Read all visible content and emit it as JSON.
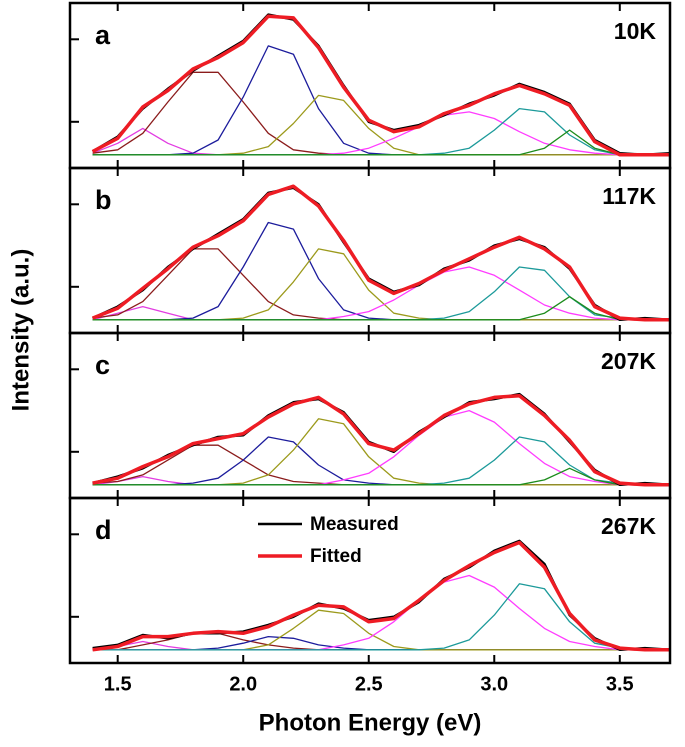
{
  "chart_data": [
    {
      "type": "line",
      "panel_label": "a",
      "annotation": "10K",
      "y_label": "Intensity (a.u.)",
      "x": [
        1.4,
        1.5,
        1.6,
        1.7,
        1.8,
        1.9,
        2.0,
        2.1,
        2.2,
        2.3,
        2.4,
        2.5,
        2.6,
        2.7,
        2.8,
        2.9,
        3.0,
        3.1,
        3.2,
        3.3,
        3.4,
        3.5,
        3.6,
        3.7
      ],
      "xlim": [
        1.31,
        3.7
      ],
      "ylim": [
        -0.08,
        0.92
      ],
      "yticks": [
        0.2,
        0.7
      ],
      "series": [
        {
          "color": "#e23ce2",
          "values": [
            0.01,
            0.07,
            0.16,
            0.07,
            0.01,
            0,
            0,
            0,
            0,
            0,
            0,
            0,
            0,
            0,
            0,
            0,
            0,
            0,
            0,
            0,
            0,
            0,
            0,
            0
          ]
        },
        {
          "color": "#8b1c1c",
          "values": [
            0.01,
            0.03,
            0.13,
            0.32,
            0.5,
            0.5,
            0.32,
            0.13,
            0.03,
            0.01,
            0,
            0,
            0,
            0,
            0,
            0,
            0,
            0,
            0,
            0,
            0,
            0,
            0,
            0
          ]
        },
        {
          "color": "#1c1c9c",
          "values": [
            0,
            0,
            0,
            0,
            0.01,
            0.09,
            0.35,
            0.66,
            0.61,
            0.28,
            0.07,
            0.01,
            0,
            0,
            0,
            0,
            0,
            0,
            0,
            0,
            0,
            0,
            0,
            0
          ]
        },
        {
          "color": "#9c9a1c",
          "values": [
            0,
            0,
            0,
            0,
            0,
            0,
            0.01,
            0.05,
            0.19,
            0.36,
            0.33,
            0.16,
            0.04,
            0,
            0,
            0,
            0,
            0,
            0,
            0,
            0,
            0,
            0,
            0
          ]
        },
        {
          "color": "#ff3cff",
          "values": [
            0,
            0,
            0,
            0,
            0,
            0,
            0,
            0,
            0,
            0,
            0.01,
            0.04,
            0.1,
            0.17,
            0.24,
            0.26,
            0.22,
            0.14,
            0.07,
            0.03,
            0.01,
            0,
            0,
            0
          ]
        },
        {
          "color": "#1c9a9a",
          "values": [
            0,
            0,
            0,
            0,
            0,
            0,
            0,
            0,
            0,
            0,
            0,
            0,
            0,
            0,
            0.01,
            0.04,
            0.15,
            0.28,
            0.26,
            0.12,
            0.03,
            0,
            0,
            0
          ]
        },
        {
          "color": "#1c8c1c",
          "values": [
            0,
            0,
            0,
            0,
            0,
            0,
            0,
            0,
            0,
            0,
            0,
            0,
            0,
            0,
            0,
            0,
            0,
            0,
            0.04,
            0.15,
            0.04,
            0,
            0,
            0
          ]
        },
        {
          "color": "#000000",
          "width": 2.5,
          "values": [
            0.02,
            0.11,
            0.28,
            0.4,
            0.51,
            0.6,
            0.69,
            0.85,
            0.82,
            0.66,
            0.42,
            0.2,
            0.15,
            0.18,
            0.24,
            0.31,
            0.36,
            0.43,
            0.38,
            0.31,
            0.09,
            0.01,
            0,
            0.01
          ]
        },
        {
          "color": "#ee1c24",
          "width": 3.5,
          "values": [
            0.02,
            0.1,
            0.29,
            0.39,
            0.52,
            0.59,
            0.68,
            0.84,
            0.83,
            0.65,
            0.41,
            0.21,
            0.14,
            0.17,
            0.25,
            0.3,
            0.37,
            0.42,
            0.37,
            0.3,
            0.08,
            0,
            0,
            0
          ]
        }
      ]
    },
    {
      "type": "line",
      "panel_label": "b",
      "annotation": "117K",
      "x": [
        1.4,
        1.5,
        1.6,
        1.7,
        1.8,
        1.9,
        2.0,
        2.1,
        2.2,
        2.3,
        2.4,
        2.5,
        2.6,
        2.7,
        2.8,
        2.9,
        3.0,
        3.1,
        3.2,
        3.3,
        3.4,
        3.5,
        3.6,
        3.7
      ],
      "xlim": [
        1.31,
        3.7
      ],
      "ylim": [
        -0.08,
        0.92
      ],
      "yticks": [
        0.2,
        0.7
      ],
      "series": [
        {
          "color": "#e23ce2",
          "values": [
            0,
            0.04,
            0.08,
            0.04,
            0,
            0,
            0,
            0,
            0,
            0,
            0,
            0,
            0,
            0,
            0,
            0,
            0,
            0,
            0,
            0,
            0,
            0,
            0,
            0
          ]
        },
        {
          "color": "#8b1c1c",
          "values": [
            0.01,
            0.03,
            0.11,
            0.27,
            0.43,
            0.43,
            0.27,
            0.11,
            0.03,
            0.01,
            0,
            0,
            0,
            0,
            0,
            0,
            0,
            0,
            0,
            0,
            0,
            0,
            0,
            0
          ]
        },
        {
          "color": "#1c1c9c",
          "values": [
            0,
            0,
            0,
            0,
            0.01,
            0.08,
            0.32,
            0.59,
            0.55,
            0.25,
            0.06,
            0.01,
            0,
            0,
            0,
            0,
            0,
            0,
            0,
            0,
            0,
            0,
            0,
            0
          ]
        },
        {
          "color": "#9c9a1c",
          "values": [
            0,
            0,
            0,
            0,
            0,
            0,
            0.01,
            0.06,
            0.23,
            0.43,
            0.4,
            0.18,
            0.04,
            0.01,
            0,
            0,
            0,
            0,
            0,
            0,
            0,
            0,
            0,
            0
          ]
        },
        {
          "color": "#ff3cff",
          "values": [
            0,
            0,
            0,
            0,
            0,
            0,
            0,
            0,
            0,
            0,
            0.02,
            0.05,
            0.12,
            0.21,
            0.29,
            0.32,
            0.27,
            0.18,
            0.09,
            0.04,
            0.01,
            0,
            0,
            0
          ]
        },
        {
          "color": "#1c9a9a",
          "values": [
            0,
            0,
            0,
            0,
            0,
            0,
            0,
            0,
            0,
            0,
            0,
            0,
            0,
            0,
            0.01,
            0.05,
            0.17,
            0.32,
            0.3,
            0.14,
            0.03,
            0.01,
            0,
            0
          ]
        },
        {
          "color": "#1c8c1c",
          "values": [
            0,
            0,
            0,
            0,
            0,
            0,
            0,
            0,
            0,
            0,
            0,
            0,
            0,
            0,
            0,
            0,
            0,
            0,
            0.04,
            0.14,
            0.04,
            0,
            0,
            0
          ]
        },
        {
          "color": "#000000",
          "width": 2.5,
          "values": [
            0.01,
            0.08,
            0.18,
            0.32,
            0.43,
            0.52,
            0.61,
            0.77,
            0.8,
            0.7,
            0.47,
            0.25,
            0.17,
            0.21,
            0.31,
            0.36,
            0.45,
            0.49,
            0.44,
            0.31,
            0.09,
            0,
            0.01,
            0
          ]
        },
        {
          "color": "#ee1c24",
          "width": 3.5,
          "values": [
            0.01,
            0.07,
            0.19,
            0.31,
            0.44,
            0.51,
            0.6,
            0.76,
            0.81,
            0.69,
            0.48,
            0.24,
            0.16,
            0.22,
            0.3,
            0.37,
            0.44,
            0.5,
            0.43,
            0.32,
            0.08,
            0.01,
            0,
            0
          ]
        }
      ]
    },
    {
      "type": "line",
      "panel_label": "c",
      "annotation": "207K",
      "x": [
        1.4,
        1.5,
        1.6,
        1.7,
        1.8,
        1.9,
        2.0,
        2.1,
        2.2,
        2.3,
        2.4,
        2.5,
        2.6,
        2.7,
        2.8,
        2.9,
        3.0,
        3.1,
        3.2,
        3.3,
        3.4,
        3.5,
        3.6,
        3.7
      ],
      "xlim": [
        1.31,
        3.7
      ],
      "ylim": [
        -0.08,
        0.92
      ],
      "yticks": [
        0.2,
        0.7
      ],
      "series": [
        {
          "color": "#e23ce2",
          "values": [
            0,
            0.02,
            0.05,
            0.02,
            0,
            0,
            0,
            0,
            0,
            0,
            0,
            0,
            0,
            0,
            0,
            0,
            0,
            0,
            0,
            0,
            0,
            0,
            0,
            0
          ]
        },
        {
          "color": "#8b1c1c",
          "values": [
            0.01,
            0.02,
            0.06,
            0.15,
            0.24,
            0.24,
            0.15,
            0.06,
            0.02,
            0.01,
            0,
            0,
            0,
            0,
            0,
            0,
            0,
            0,
            0,
            0,
            0,
            0,
            0,
            0
          ]
        },
        {
          "color": "#1c1c9c",
          "values": [
            0,
            0,
            0,
            0,
            0.01,
            0.04,
            0.15,
            0.29,
            0.26,
            0.12,
            0.03,
            0.01,
            0,
            0,
            0,
            0,
            0,
            0,
            0,
            0,
            0,
            0,
            0,
            0
          ]
        },
        {
          "color": "#9c9a1c",
          "values": [
            0,
            0,
            0,
            0,
            0,
            0,
            0.01,
            0.06,
            0.21,
            0.4,
            0.37,
            0.17,
            0.04,
            0.01,
            0,
            0,
            0,
            0,
            0,
            0,
            0,
            0,
            0,
            0
          ]
        },
        {
          "color": "#ff3cff",
          "values": [
            0,
            0,
            0,
            0,
            0,
            0,
            0,
            0,
            0,
            0,
            0.03,
            0.07,
            0.17,
            0.3,
            0.41,
            0.45,
            0.38,
            0.25,
            0.13,
            0.05,
            0.02,
            0,
            0,
            0
          ]
        },
        {
          "color": "#1c9a9a",
          "values": [
            0,
            0,
            0,
            0,
            0,
            0,
            0,
            0,
            0,
            0,
            0,
            0,
            0,
            0,
            0.01,
            0.04,
            0.15,
            0.29,
            0.26,
            0.12,
            0.03,
            0.01,
            0,
            0
          ]
        },
        {
          "color": "#1c8c1c",
          "values": [
            0,
            0,
            0,
            0,
            0,
            0,
            0,
            0,
            0,
            0,
            0,
            0,
            0,
            0,
            0,
            0,
            0,
            0,
            0.03,
            0.1,
            0.03,
            0,
            0,
            0
          ]
        },
        {
          "color": "#000000",
          "width": 2.5,
          "values": [
            0.01,
            0.05,
            0.1,
            0.18,
            0.24,
            0.29,
            0.3,
            0.42,
            0.5,
            0.52,
            0.44,
            0.26,
            0.2,
            0.32,
            0.41,
            0.5,
            0.52,
            0.55,
            0.43,
            0.26,
            0.09,
            0,
            0.01,
            0
          ]
        },
        {
          "color": "#ee1c24",
          "width": 3.5,
          "values": [
            0.01,
            0.04,
            0.11,
            0.17,
            0.25,
            0.28,
            0.31,
            0.41,
            0.49,
            0.53,
            0.43,
            0.25,
            0.21,
            0.31,
            0.42,
            0.49,
            0.53,
            0.54,
            0.42,
            0.27,
            0.08,
            0.01,
            0,
            0
          ]
        }
      ]
    },
    {
      "type": "line",
      "panel_label": "d",
      "annotation": "267K",
      "x_label": "Photon Energy (eV)",
      "legend": "top-center",
      "x": [
        1.4,
        1.5,
        1.6,
        1.7,
        1.8,
        1.9,
        2.0,
        2.1,
        2.2,
        2.3,
        2.4,
        2.5,
        2.6,
        2.7,
        2.8,
        2.9,
        3.0,
        3.1,
        3.2,
        3.3,
        3.4,
        3.5,
        3.6,
        3.7
      ],
      "xlim": [
        1.31,
        3.7
      ],
      "ylim": [
        -0.08,
        0.92
      ],
      "yticks": [
        0.2,
        0.7
      ],
      "xticks": [
        1.5,
        {
          "value": 2,
          "label": "2.0"
        },
        2.5,
        {
          "value": 3,
          "label": "3.0"
        },
        3.5
      ],
      "series": [
        {
          "color": "#e23ce2",
          "values": [
            0,
            0.02,
            0.05,
            0.02,
            0,
            0,
            0,
            0,
            0,
            0,
            0,
            0,
            0,
            0,
            0,
            0,
            0,
            0,
            0,
            0,
            0,
            0,
            0,
            0
          ]
        },
        {
          "color": "#8b1c1c",
          "values": [
            0,
            0,
            0.03,
            0.06,
            0.1,
            0.1,
            0.06,
            0.03,
            0.01,
            0,
            0,
            0,
            0,
            0,
            0,
            0,
            0,
            0,
            0,
            0,
            0,
            0,
            0,
            0
          ]
        },
        {
          "color": "#1c1c9c",
          "values": [
            0,
            0,
            0,
            0,
            0,
            0.01,
            0.04,
            0.08,
            0.07,
            0.03,
            0.01,
            0,
            0,
            0,
            0,
            0,
            0,
            0,
            0,
            0,
            0,
            0,
            0,
            0
          ]
        },
        {
          "color": "#9c9a1c",
          "values": [
            0,
            0,
            0,
            0,
            0,
            0,
            0,
            0.03,
            0.13,
            0.24,
            0.22,
            0.1,
            0.02,
            0,
            0,
            0,
            0,
            0,
            0,
            0,
            0,
            0,
            0,
            0
          ]
        },
        {
          "color": "#ff3cff",
          "values": [
            0,
            0,
            0,
            0,
            0,
            0,
            0,
            0,
            0,
            0,
            0.03,
            0.07,
            0.17,
            0.3,
            0.41,
            0.45,
            0.38,
            0.25,
            0.13,
            0.05,
            0.02,
            0,
            0,
            0
          ]
        },
        {
          "color": "#1c9a9a",
          "values": [
            0,
            0,
            0,
            0,
            0,
            0,
            0,
            0,
            0,
            0,
            0,
            0,
            0,
            0,
            0.01,
            0.06,
            0.21,
            0.4,
            0.37,
            0.17,
            0.04,
            0.01,
            0,
            0
          ]
        },
        {
          "name": "Measured",
          "color": "#000000",
          "width": 2.5,
          "values": [
            0.01,
            0.03,
            0.09,
            0.07,
            0.1,
            0.1,
            0.11,
            0.15,
            0.2,
            0.28,
            0.25,
            0.18,
            0.2,
            0.29,
            0.43,
            0.5,
            0.6,
            0.66,
            0.52,
            0.21,
            0.07,
            0,
            0.01,
            0
          ]
        },
        {
          "name": "Fitted",
          "color": "#ee1c24",
          "width": 3.5,
          "values": [
            0,
            0.02,
            0.08,
            0.08,
            0.1,
            0.11,
            0.1,
            0.14,
            0.21,
            0.27,
            0.26,
            0.17,
            0.19,
            0.3,
            0.42,
            0.51,
            0.59,
            0.65,
            0.5,
            0.22,
            0.06,
            0.01,
            0,
            0
          ]
        }
      ]
    }
  ]
}
